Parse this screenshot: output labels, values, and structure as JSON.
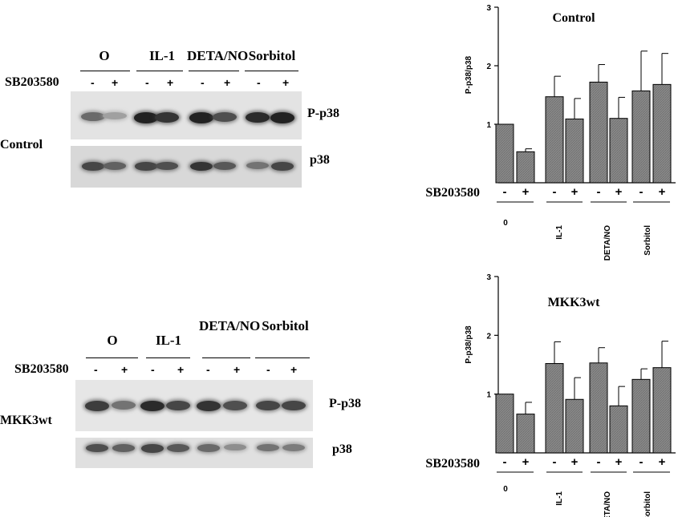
{
  "panels": [
    {
      "id": "control",
      "row_label": "Control",
      "treatment_label": "SB203580",
      "groups": [
        "O",
        "IL-1",
        "DETA/NO",
        "Sorbitol"
      ],
      "lane_signs": [
        "-",
        "+",
        "-",
        "+",
        "-",
        "+",
        "-",
        "+"
      ],
      "blot_labels": [
        "P-p38",
        "p38"
      ],
      "phospho_band_intensity": [
        0.55,
        0.25,
        0.95,
        0.85,
        0.95,
        0.7,
        0.9,
        0.95
      ],
      "total_band_intensity": [
        0.75,
        0.6,
        0.75,
        0.7,
        0.85,
        0.65,
        0.5,
        0.75
      ]
    },
    {
      "id": "mkk3wt",
      "row_label": "MKK3wt",
      "treatment_label": "SB203580",
      "groups": [
        "O",
        "IL-1",
        "DETA/NO",
        "Sorbitol"
      ],
      "lane_signs": [
        "-",
        "+",
        "-",
        "+",
        "-",
        "+",
        "-",
        "+"
      ],
      "blot_labels": [
        "P-p38",
        "p38"
      ],
      "phospho_band_intensity": [
        0.8,
        0.5,
        0.9,
        0.75,
        0.85,
        0.7,
        0.75,
        0.75
      ],
      "total_band_intensity": [
        0.7,
        0.6,
        0.75,
        0.65,
        0.55,
        0.35,
        0.5,
        0.45
      ]
    }
  ],
  "chart_data": [
    {
      "type": "bar",
      "title": "Control",
      "ylabel": "P-p38/p38",
      "ylim": [
        0,
        3
      ],
      "yticks": [
        "1",
        "2",
        "3"
      ],
      "treatment_label": "SB203580",
      "lane_signs": [
        "-",
        "+",
        "-",
        "+",
        "-",
        "+",
        "-",
        "+"
      ],
      "group_labels": [
        "0",
        "IL-1",
        "DETA/NO",
        "Sorbitol"
      ],
      "values": [
        1.0,
        0.53,
        1.47,
        1.09,
        1.72,
        1.1,
        1.57,
        1.68
      ],
      "errors": [
        0,
        0.05,
        0.35,
        0.35,
        0.3,
        0.36,
        0.68,
        0.53
      ]
    },
    {
      "type": "bar",
      "title": "MKK3wt",
      "ylabel": "P-p38/p38",
      "ylim": [
        0,
        3
      ],
      "yticks": [
        "1",
        "2",
        "3"
      ],
      "treatment_label": "SB203580",
      "lane_signs": [
        "-",
        "+",
        "-",
        "+",
        "-",
        "+",
        "-",
        "+"
      ],
      "group_labels": [
        "0",
        "IL-1",
        "DETA/NO",
        "Sorbitol"
      ],
      "values": [
        1.0,
        0.66,
        1.52,
        0.91,
        1.53,
        0.8,
        1.25,
        1.45
      ],
      "errors": [
        0,
        0.2,
        0.37,
        0.37,
        0.26,
        0.33,
        0.18,
        0.45
      ]
    }
  ]
}
